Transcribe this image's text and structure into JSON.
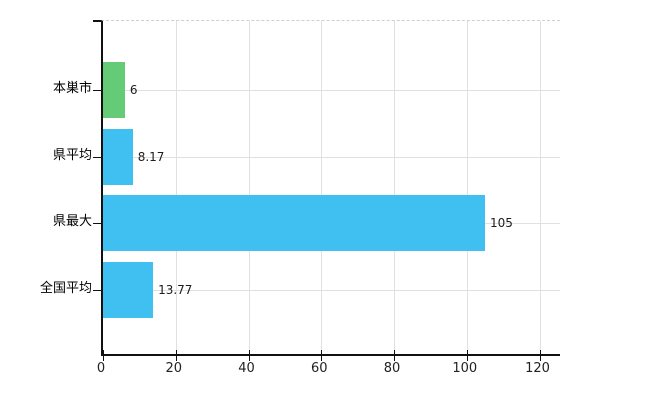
{
  "chart_data": {
    "type": "bar",
    "orientation": "horizontal",
    "title": "",
    "xlabel": "",
    "ylabel": "",
    "categories": [
      "本巣市",
      "県平均",
      "県最大",
      "全国平均"
    ],
    "values": [
      6,
      8.17,
      105,
      13.77
    ],
    "value_labels": [
      "6",
      "8.17",
      "105",
      "13.77"
    ],
    "bar_colors": [
      "#66cb77",
      "#3fc0f0",
      "#3fc0f0",
      "#3fc0f0"
    ],
    "x_ticks": [
      0,
      20,
      40,
      60,
      80,
      100,
      120
    ],
    "x_tick_labels": [
      "0",
      "20",
      "40",
      "60",
      "80",
      "100",
      "120"
    ],
    "xlim": [
      0,
      125.7
    ],
    "grid": "vertical ticks + horizontal category centerlines",
    "legend": false,
    "colors": {
      "axis": "#111111",
      "gridline": "#e0e0e0",
      "top_border": "#cfcfcf",
      "text": "#222222",
      "background": "#ffffff"
    }
  }
}
